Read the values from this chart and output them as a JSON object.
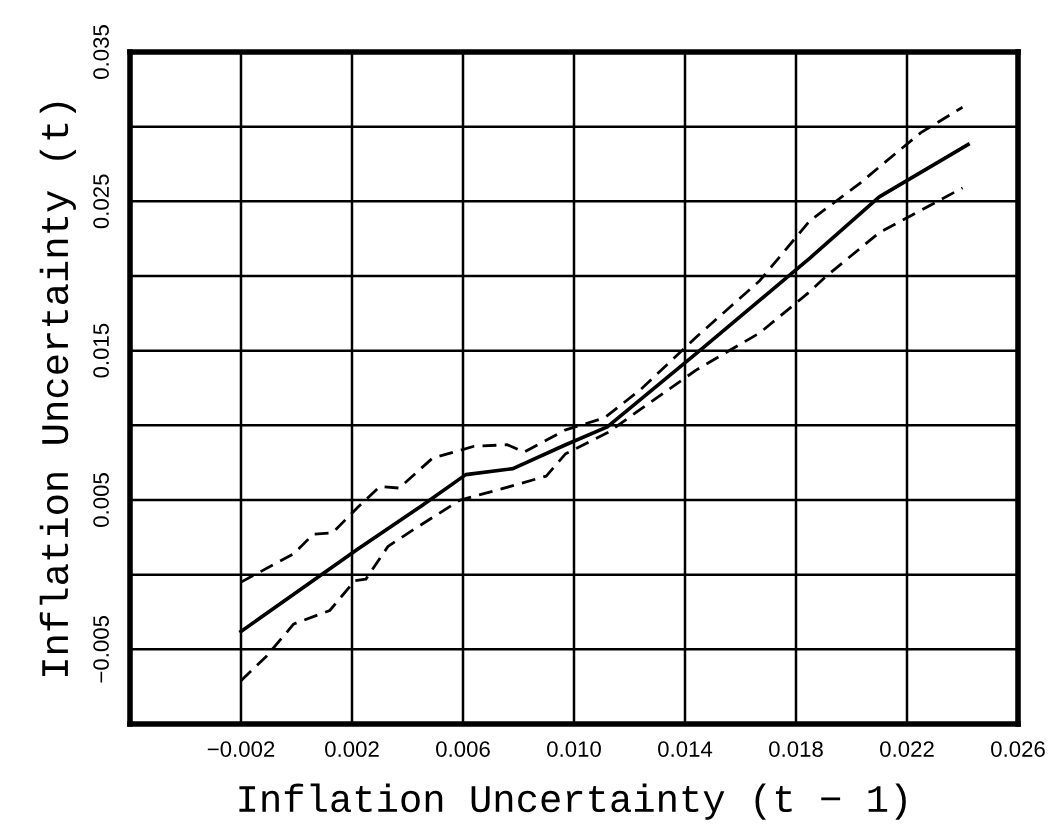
{
  "chart_data": {
    "type": "line",
    "xlabel": "Inflation Uncertainty (t − 1)",
    "ylabel": "Inflation Uncertainty (t)",
    "series": [
      {
        "color": "#000000",
        "line_style": "solid",
        "x": [
          -0.002,
          0.0022,
          0.0045,
          0.0061,
          0.0078,
          0.0097,
          0.0112,
          0.0144,
          0.0185,
          0.021,
          0.0242
        ],
        "values": [
          -0.0038,
          0.0017,
          0.0046,
          0.0067,
          0.0071,
          0.0087,
          0.0099,
          0.0148,
          0.0212,
          0.0253,
          0.0288
        ]
      },
      {
        "color": "#000000",
        "line_style": "dashed",
        "x": [
          -0.002,
          -0.0001,
          0.0006,
          0.0013,
          0.0022,
          0.003,
          0.0037,
          0.0049,
          0.0064,
          0.0076,
          0.0082,
          0.0097,
          0.0111,
          0.0124,
          0.0144,
          0.0167,
          0.0185,
          0.0203,
          0.021,
          0.0225,
          0.024
        ],
        "values": [
          -0.0005,
          0.0014,
          0.0027,
          0.0028,
          0.0045,
          0.0059,
          0.0058,
          0.0078,
          0.0086,
          0.0087,
          0.0082,
          0.0097,
          0.0105,
          0.0124,
          0.0159,
          0.0197,
          0.0237,
          0.0262,
          0.0273,
          0.0296,
          0.0313
        ]
      },
      {
        "color": "#000000",
        "line_style": "dashed",
        "x": [
          -0.002,
          -0.0011,
          -0.0001,
          0.0012,
          0.0021,
          0.0025,
          0.0033,
          0.0042,
          0.0059,
          0.0073,
          0.009,
          0.0097,
          0.0112,
          0.0144,
          0.0167,
          0.0184,
          0.0191,
          0.021,
          0.0225,
          0.024
        ],
        "values": [
          -0.0071,
          -0.0055,
          -0.0033,
          -0.0024,
          -0.0004,
          -0.0003,
          0.0019,
          0.003,
          0.005,
          0.0057,
          0.0066,
          0.0081,
          0.0095,
          0.0137,
          0.0162,
          0.0188,
          0.02,
          0.0229,
          0.0244,
          0.0259
        ]
      }
    ],
    "xlim": [
      -0.006,
      0.026
    ],
    "ylim": [
      -0.01,
      0.035
    ],
    "xticks": [
      {
        "value": -0.002,
        "label": "−0.002"
      },
      {
        "value": 0.002,
        "label": "0.002"
      },
      {
        "value": 0.006,
        "label": "0.006"
      },
      {
        "value": 0.01,
        "label": "0.010"
      },
      {
        "value": 0.014,
        "label": "0.014"
      },
      {
        "value": 0.018,
        "label": "0.018"
      },
      {
        "value": 0.022,
        "label": "0.022"
      },
      {
        "value": 0.026,
        "label": "0.026"
      }
    ],
    "yticks": [
      {
        "value": -0.005,
        "label": "−0.005"
      },
      {
        "value": 0.0,
        "label": null
      },
      {
        "value": 0.005,
        "label": "0.005"
      },
      {
        "value": 0.01,
        "label": null
      },
      {
        "value": 0.015,
        "label": "0.015"
      },
      {
        "value": 0.02,
        "label": null
      },
      {
        "value": 0.025,
        "label": "0.025"
      },
      {
        "value": 0.03,
        "label": null
      },
      {
        "value": 0.035,
        "label": "0.035"
      }
    ],
    "grid": true
  }
}
